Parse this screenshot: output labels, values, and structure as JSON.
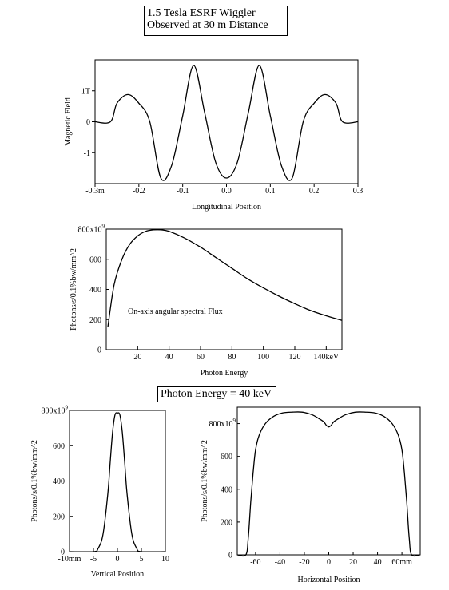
{
  "header": {
    "title_line1": "1.5 Tesla ESRF Wiggler",
    "title_line2": "Observed at 30 m Distance",
    "energy_label": "Photon Energy = 40 keV"
  },
  "chart_data": [
    {
      "id": "field",
      "type": "line",
      "xlabel": "Longitudinal Position",
      "ylabel": "Magnetic Field",
      "xlim": [
        -0.3,
        0.3
      ],
      "ylim": [
        -2.0,
        2.0
      ],
      "xticks": [
        {
          "v": -0.3,
          "label": "-0.3m"
        },
        {
          "v": -0.2,
          "label": "-0.2"
        },
        {
          "v": -0.1,
          "label": "-0.1"
        },
        {
          "v": 0.0,
          "label": "0.0"
        },
        {
          "v": 0.1,
          "label": "0.1"
        },
        {
          "v": 0.2,
          "label": "0.2"
        },
        {
          "v": 0.3,
          "label": "0.3"
        }
      ],
      "yticks": [
        {
          "v": 1,
          "label": "1T"
        },
        {
          "v": 0,
          "label": "0"
        },
        {
          "v": -1,
          "label": "-1"
        }
      ],
      "x": [
        -0.3,
        -0.265,
        -0.25,
        -0.225,
        -0.2,
        -0.175,
        -0.15,
        -0.125,
        -0.1,
        -0.075,
        -0.05,
        -0.025,
        0.0,
        0.025,
        0.05,
        0.075,
        0.1,
        0.125,
        0.15,
        0.175,
        0.2,
        0.225,
        0.25,
        0.265,
        0.3
      ],
      "values": [
        0.0,
        0.0,
        0.6,
        0.88,
        0.6,
        0.0,
        -1.82,
        -1.4,
        0.2,
        1.82,
        0.3,
        -1.3,
        -1.82,
        -1.3,
        0.3,
        1.82,
        0.2,
        -1.4,
        -1.82,
        0.0,
        0.6,
        0.88,
        0.6,
        0.0,
        0.0
      ]
    },
    {
      "id": "spectrum",
      "type": "line",
      "xlabel": "Photon Energy",
      "ylabel": "Photons/s/0.1%bw/mm^2",
      "annotation": "On-axis angular spectral Flux",
      "xlim": [
        0,
        150
      ],
      "ylim": [
        0,
        800
      ],
      "xticks": [
        {
          "v": 20,
          "label": "20"
        },
        {
          "v": 40,
          "label": "40"
        },
        {
          "v": 60,
          "label": "60"
        },
        {
          "v": 80,
          "label": "80"
        },
        {
          "v": 100,
          "label": "100"
        },
        {
          "v": 120,
          "label": "120"
        },
        {
          "v": 140,
          "label": "140keV"
        }
      ],
      "yticks": [
        {
          "v": 0,
          "label": "0"
        },
        {
          "v": 200,
          "label": "200"
        },
        {
          "v": 400,
          "label": "400"
        },
        {
          "v": 600,
          "label": "600"
        },
        {
          "v": 800,
          "label": "800x10",
          "sup": "9"
        }
      ],
      "x": [
        1,
        5,
        10,
        15,
        20,
        25,
        30,
        35,
        40,
        50,
        60,
        70,
        80,
        90,
        100,
        110,
        120,
        130,
        140,
        150
      ],
      "values": [
        150,
        430,
        600,
        700,
        755,
        785,
        795,
        795,
        785,
        740,
        680,
        610,
        540,
        470,
        410,
        355,
        305,
        260,
        225,
        195
      ]
    },
    {
      "id": "vertical",
      "type": "line",
      "xlabel": "Vertical Position",
      "ylabel": "Photons/s/0.1%bw/mm^2",
      "xlim": [
        -10,
        10
      ],
      "ylim": [
        0,
        800
      ],
      "xticks": [
        {
          "v": -10,
          "label": "-10mm"
        },
        {
          "v": -5,
          "label": "-5"
        },
        {
          "v": 0,
          "label": "0"
        },
        {
          "v": 5,
          "label": "5"
        },
        {
          "v": 10,
          "label": "10"
        }
      ],
      "yticks": [
        {
          "v": 0,
          "label": "0"
        },
        {
          "v": 200,
          "label": "200"
        },
        {
          "v": 400,
          "label": "400"
        },
        {
          "v": 600,
          "label": "600"
        },
        {
          "v": 800,
          "label": "800x10",
          "sup": "9"
        }
      ],
      "x": [
        -10,
        -5,
        -4,
        -3,
        -2,
        -1.5,
        -1,
        -0.5,
        0,
        0.5,
        1,
        1.5,
        2,
        3,
        4,
        5,
        10
      ],
      "values": [
        0,
        0,
        20,
        100,
        330,
        510,
        680,
        775,
        785,
        775,
        680,
        510,
        330,
        100,
        20,
        0,
        0
      ]
    },
    {
      "id": "horizontal",
      "type": "line",
      "xlabel": "Horizontal Position",
      "ylabel": "Photons/s/0.1%bw/mm^2",
      "xlim": [
        -75,
        75
      ],
      "ylim": [
        0,
        900
      ],
      "xticks": [
        {
          "v": -60,
          "label": "-60"
        },
        {
          "v": -40,
          "label": "-40"
        },
        {
          "v": -20,
          "label": "-20"
        },
        {
          "v": 0,
          "label": "0"
        },
        {
          "v": 20,
          "label": "20"
        },
        {
          "v": 40,
          "label": "40"
        },
        {
          "v": 60,
          "label": "60mm"
        }
      ],
      "yticks": [
        {
          "v": 0,
          "label": "0"
        },
        {
          "v": 200,
          "label": "200"
        },
        {
          "v": 400,
          "label": "400"
        },
        {
          "v": 600,
          "label": "600"
        },
        {
          "v": 800,
          "label": "800x10",
          "sup": "9"
        }
      ],
      "x": [
        -75,
        -68,
        -66,
        -64,
        -62,
        -60,
        -57,
        -52,
        -45,
        -38,
        -30,
        -22,
        -14,
        -8,
        -4,
        -2,
        0,
        2,
        4,
        8,
        14,
        22,
        30,
        38,
        45,
        52,
        57,
        60,
        62,
        64,
        66,
        68,
        75
      ],
      "values": [
        0,
        0,
        100,
        320,
        500,
        640,
        730,
        800,
        845,
        865,
        870,
        870,
        855,
        830,
        810,
        790,
        780,
        790,
        810,
        830,
        855,
        870,
        870,
        865,
        845,
        800,
        730,
        640,
        500,
        320,
        100,
        0,
        0
      ]
    }
  ]
}
